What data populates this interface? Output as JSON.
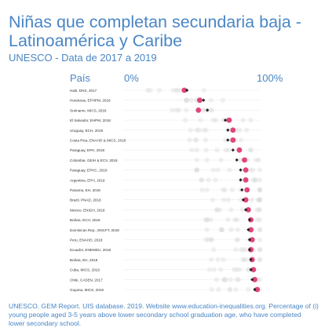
{
  "header": {
    "title": "Niñas que completan secundaria baja - Latinoamérica y Caribe",
    "subtitle": "UNESCO - Data de 2017 a 2019"
  },
  "footer": {
    "text": "UNESCO. GEM Report. UIS database. 2019. Website www.education-inequalities.org. Percentage of (i) young people aged 3-5 years above lower secondary school graduation age, who have completed lower secondary school."
  },
  "colors": {
    "text": "#4a86c5",
    "highlight": "#e0457b",
    "marker": "#222222",
    "background_dots": "#d8d8d8",
    "row_line": "#ececec"
  },
  "chart_data": {
    "type": "scatter",
    "category_header": "País",
    "axis_min_label": "0%",
    "axis_max_label": "100%",
    "xlim": [
      0,
      100
    ],
    "categories": [
      "Haiti, DHS, 2017",
      "Honduras, EPHPM, 2018",
      "Suriname, MICS, 2018",
      "El Salvador, EHPM, 2018",
      "Uruguay, ECH, 2018",
      "Costa Rica, ENAHO & MICS, 2018",
      "Paraguay, EPH, 2018",
      "Colombia, GEIH & ECV, 2018",
      "Paraguay, EPHC, 2019",
      "Argentina, EPH, 2019",
      "Panama, EH, 2018",
      "Brazil, PNAD, 2018",
      "Mexico, ENIGH, 2018",
      "Bolivia, ECH, 2018",
      "Dominican Rep., ENCFT, 2018",
      "Peru, ENAHO, 2018",
      "Ecuador, ENEMDU, 2018",
      "Bolivia, EH, 2019",
      "Cuba, MICS, 2019",
      "Chile, CASEN, 2017",
      "Guyana, MICS, 2019"
    ],
    "series": [
      {
        "values": [
          43,
          56,
          59,
          73,
          75,
          75,
          79,
          82,
          85,
          85,
          86,
          87,
          89,
          92,
          91,
          92,
          92,
          93,
          93,
          94,
          96
        ]
      },
      {
        "values": [
          41,
          53,
          52,
          76,
          79,
          79,
          84,
          88,
          89,
          89,
          90,
          89,
          91,
          93,
          93,
          94,
          93,
          94,
          95,
          96,
          98
        ]
      }
    ]
  }
}
